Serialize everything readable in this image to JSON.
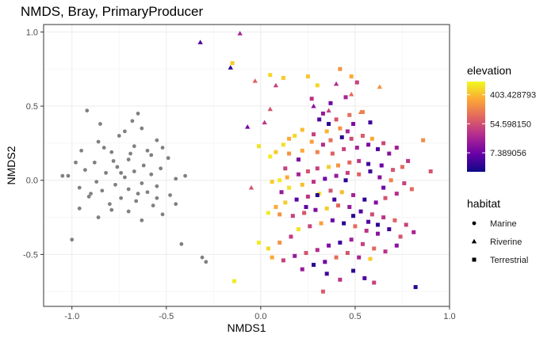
{
  "chart_data": {
    "type": "scatter",
    "title": "NMDS, Bray, PrimaryProducer",
    "xlabel": "NMDS1",
    "ylabel": "NMDS2",
    "xlim": [
      -1.15,
      1.0
    ],
    "ylim": [
      -0.85,
      1.05
    ],
    "xticks": [
      -1.0,
      -0.5,
      0.0,
      0.5,
      1.0
    ],
    "xtick_labels": [
      "-1.0",
      "-0.5",
      "0.0",
      "0.5",
      "1.0"
    ],
    "yticks": [
      -0.5,
      0.0,
      0.5,
      1.0
    ],
    "ytick_labels": [
      "-0.5",
      "0.0",
      "0.5",
      "1.0"
    ],
    "grid": true,
    "legend_position": "right",
    "color_legend": {
      "title": "elevation",
      "scale": "log",
      "min": 2.0,
      "max": 1000.0,
      "tick_values": [
        403.428793,
        54.59815,
        7.389056
      ],
      "tick_labels": [
        "403.428793",
        "54.598150",
        "7.389056"
      ],
      "palette": [
        "#0d0887",
        "#6a00a8",
        "#b12a90",
        "#e16462",
        "#fca636",
        "#f0f921"
      ]
    },
    "shape_legend": {
      "title": "habitat",
      "items": [
        {
          "label": "Marine",
          "shape": "circle"
        },
        {
          "label": "Riverine",
          "shape": "triangle"
        },
        {
          "label": "Terrestrial",
          "shape": "square"
        }
      ]
    },
    "marine_color": "#808080",
    "marine_points": [
      [
        -0.92,
        0.47
      ],
      [
        -0.65,
        0.45
      ],
      [
        -0.85,
        0.38
      ],
      [
        -0.72,
        0.33
      ],
      [
        -0.63,
        0.35
      ],
      [
        -0.75,
        0.3
      ],
      [
        -0.55,
        0.27
      ],
      [
        -0.67,
        0.23
      ],
      [
        -0.83,
        0.22
      ],
      [
        -0.95,
        0.2
      ],
      [
        -0.79,
        0.19
      ],
      [
        -0.58,
        0.17
      ],
      [
        -0.49,
        0.15
      ],
      [
        -0.7,
        0.14
      ],
      [
        -0.88,
        0.12
      ],
      [
        -0.62,
        0.1
      ],
      [
        -0.76,
        0.09
      ],
      [
        -0.53,
        0.08
      ],
      [
        -0.93,
        0.07
      ],
      [
        -0.67,
        0.06
      ],
      [
        -0.82,
        0.05
      ],
      [
        -0.58,
        0.04
      ],
      [
        -1.02,
        0.03
      ],
      [
        -0.72,
        0.02
      ],
      [
        -0.45,
        0.01
      ],
      [
        -0.87,
        -0.01
      ],
      [
        -0.63,
        -0.02
      ],
      [
        -0.77,
        -0.03
      ],
      [
        -0.55,
        -0.04
      ],
      [
        -0.96,
        -0.05
      ],
      [
        -0.7,
        -0.06
      ],
      [
        -0.84,
        -0.07
      ],
      [
        -0.6,
        -0.08
      ],
      [
        -0.48,
        -0.1
      ],
      [
        -0.91,
        -0.11
      ],
      [
        -0.74,
        -0.12
      ],
      [
        -0.66,
        -0.14
      ],
      [
        -0.8,
        -0.16
      ],
      [
        -0.57,
        -0.17
      ],
      [
        -0.96,
        -0.19
      ],
      [
        -0.7,
        -0.21
      ],
      [
        -0.52,
        -0.23
      ],
      [
        -0.86,
        -0.25
      ],
      [
        -0.63,
        -0.27
      ],
      [
        -1.0,
        -0.4
      ],
      [
        -0.42,
        -0.43
      ],
      [
        -0.31,
        -0.52
      ],
      [
        -0.29,
        -0.55
      ],
      [
        -1.05,
        0.03
      ],
      [
        -0.4,
        0.03
      ],
      [
        -0.78,
        0.13
      ],
      [
        -0.69,
        0.18
      ],
      [
        -0.86,
        0.26
      ],
      [
        -0.6,
        0.2
      ],
      [
        -0.74,
        0.05
      ],
      [
        -0.65,
        -0.09
      ],
      [
        -0.55,
        -0.12
      ],
      [
        -0.45,
        -0.16
      ],
      [
        -0.9,
        -0.09
      ],
      [
        -0.98,
        0.12
      ],
      [
        -0.79,
        -0.2
      ],
      [
        -0.68,
        0.4
      ],
      [
        -0.52,
        0.22
      ]
    ],
    "riverine_points": [
      [
        -0.11,
        0.99,
        20
      ],
      [
        -0.32,
        0.93,
        5
      ],
      [
        -0.16,
        0.76,
        3
      ],
      [
        -0.03,
        0.67,
        80
      ],
      [
        0.08,
        0.64,
        40
      ],
      [
        0.05,
        0.48,
        60
      ],
      [
        0.02,
        0.39,
        30
      ],
      [
        -0.07,
        0.36,
        8
      ],
      [
        -0.05,
        -0.05,
        60
      ],
      [
        0.28,
        0.5,
        12
      ],
      [
        0.36,
        0.47,
        40
      ],
      [
        0.53,
        0.46,
        120
      ],
      [
        0.63,
        0.63,
        200
      ],
      [
        0.4,
        0.65,
        25
      ],
      [
        0.48,
        0.58,
        90
      ]
    ],
    "terrestrial_points": [
      [
        -0.15,
        0.79,
        500
      ],
      [
        -0.14,
        -0.68,
        800
      ],
      [
        -0.01,
        0.23,
        700
      ],
      [
        0.05,
        0.71,
        600
      ],
      [
        0.12,
        0.69,
        500
      ],
      [
        0.25,
        0.7,
        450
      ],
      [
        0.3,
        0.64,
        600
      ],
      [
        0.42,
        0.75,
        200
      ],
      [
        0.48,
        0.7,
        300
      ],
      [
        0.51,
        0.66,
        40
      ],
      [
        0.45,
        0.56,
        20
      ],
      [
        0.37,
        0.52,
        8
      ],
      [
        0.27,
        0.55,
        30
      ],
      [
        0.33,
        0.45,
        15
      ],
      [
        0.4,
        0.41,
        60
      ],
      [
        0.47,
        0.44,
        100
      ],
      [
        0.54,
        0.46,
        150
      ],
      [
        0.58,
        0.39,
        4
      ],
      [
        0.49,
        0.38,
        10
      ],
      [
        0.42,
        0.35,
        200
      ],
      [
        0.35,
        0.33,
        350
      ],
      [
        0.28,
        0.31,
        40
      ],
      [
        0.22,
        0.34,
        400
      ],
      [
        0.18,
        0.3,
        600
      ],
      [
        0.15,
        0.28,
        300
      ],
      [
        0.12,
        0.24,
        700
      ],
      [
        0.08,
        0.19,
        500
      ],
      [
        0.05,
        0.16,
        800
      ],
      [
        0.15,
        0.18,
        200
      ],
      [
        0.22,
        0.2,
        300
      ],
      [
        0.3,
        0.19,
        150
      ],
      [
        0.38,
        0.18,
        80
      ],
      [
        0.44,
        0.21,
        40
      ],
      [
        0.51,
        0.22,
        20
      ],
      [
        0.57,
        0.24,
        10
      ],
      [
        0.62,
        0.21,
        5
      ],
      [
        0.68,
        0.18,
        12
      ],
      [
        0.78,
        0.13,
        30
      ],
      [
        0.86,
        0.27,
        180
      ],
      [
        0.9,
        0.06,
        60
      ],
      [
        0.33,
        0.24,
        25
      ],
      [
        0.27,
        0.26,
        250
      ],
      [
        0.37,
        0.27,
        100
      ],
      [
        0.43,
        0.29,
        3
      ],
      [
        0.48,
        0.28,
        50
      ],
      [
        0.54,
        0.3,
        70
      ],
      [
        0.59,
        0.28,
        300
      ],
      [
        0.65,
        0.25,
        45
      ],
      [
        0.72,
        0.22,
        18
      ],
      [
        0.75,
        0.09,
        90
      ],
      [
        0.7,
        0.07,
        60
      ],
      [
        0.64,
        0.1,
        7
      ],
      [
        0.57,
        0.11,
        4
      ],
      [
        0.52,
        0.13,
        30
      ],
      [
        0.47,
        0.12,
        90
      ],
      [
        0.41,
        0.1,
        200
      ],
      [
        0.36,
        0.09,
        500
      ],
      [
        0.3,
        0.08,
        40
      ],
      [
        0.25,
        0.06,
        60
      ],
      [
        0.2,
        0.04,
        20
      ],
      [
        0.14,
        0.02,
        300
      ],
      [
        0.1,
        0.0,
        800
      ],
      [
        0.06,
        -0.01,
        500
      ],
      [
        0.15,
        -0.05,
        700
      ],
      [
        0.22,
        -0.03,
        400
      ],
      [
        0.28,
        -0.01,
        30
      ],
      [
        0.34,
        0.01,
        8
      ],
      [
        0.4,
        0.03,
        15
      ],
      [
        0.46,
        0.05,
        40
      ],
      [
        0.52,
        0.04,
        80
      ],
      [
        0.58,
        0.06,
        4
      ],
      [
        0.63,
        0.02,
        12
      ],
      [
        0.69,
        0.0,
        150
      ],
      [
        0.76,
        -0.02,
        40
      ],
      [
        0.8,
        -0.06,
        90
      ],
      [
        0.72,
        -0.09,
        25
      ],
      [
        0.66,
        -0.12,
        60
      ],
      [
        0.61,
        -0.15,
        10
      ],
      [
        0.55,
        -0.13,
        3
      ],
      [
        0.49,
        -0.1,
        20
      ],
      [
        0.43,
        -0.08,
        400
      ],
      [
        0.37,
        -0.07,
        60
      ],
      [
        0.31,
        -0.09,
        700
      ],
      [
        0.25,
        -0.11,
        30
      ],
      [
        0.19,
        -0.13,
        6
      ],
      [
        0.13,
        -0.15,
        500
      ],
      [
        0.08,
        -0.18,
        300
      ],
      [
        0.04,
        -0.22,
        800
      ],
      [
        0.1,
        -0.23,
        200
      ],
      [
        0.17,
        -0.24,
        40
      ],
      [
        0.23,
        -0.22,
        60
      ],
      [
        0.29,
        -0.2,
        10
      ],
      [
        0.35,
        -0.19,
        500
      ],
      [
        0.41,
        -0.17,
        90
      ],
      [
        0.47,
        -0.18,
        15
      ],
      [
        0.53,
        -0.21,
        5
      ],
      [
        0.59,
        -0.23,
        50
      ],
      [
        0.65,
        -0.25,
        30
      ],
      [
        0.71,
        -0.27,
        80
      ],
      [
        0.77,
        -0.3,
        40
      ],
      [
        0.81,
        -0.35,
        20
      ],
      [
        0.74,
        -0.38,
        60
      ],
      [
        0.68,
        -0.33,
        4
      ],
      [
        0.62,
        -0.36,
        12
      ],
      [
        0.56,
        -0.34,
        30
      ],
      [
        0.5,
        -0.31,
        100
      ],
      [
        0.44,
        -0.29,
        3
      ],
      [
        0.38,
        -0.27,
        7
      ],
      [
        0.32,
        -0.29,
        250
      ],
      [
        0.26,
        -0.31,
        45
      ],
      [
        0.2,
        -0.33,
        700
      ],
      [
        0.16,
        -0.38,
        35
      ],
      [
        0.1,
        -0.42,
        200
      ],
      [
        0.04,
        -0.46,
        600
      ],
      [
        -0.01,
        -0.42,
        800
      ],
      [
        0.06,
        -0.52,
        300
      ],
      [
        0.12,
        -0.54,
        40
      ],
      [
        0.18,
        -0.51,
        15
      ],
      [
        0.24,
        -0.49,
        60
      ],
      [
        0.3,
        -0.47,
        25
      ],
      [
        0.36,
        -0.44,
        10
      ],
      [
        0.42,
        -0.42,
        4
      ],
      [
        0.48,
        -0.4,
        18
      ],
      [
        0.54,
        -0.43,
        40
      ],
      [
        0.6,
        -0.46,
        90
      ],
      [
        0.66,
        -0.48,
        30
      ],
      [
        0.72,
        -0.44,
        12
      ],
      [
        0.58,
        -0.53,
        500
      ],
      [
        0.52,
        -0.52,
        20
      ],
      [
        0.46,
        -0.49,
        60
      ],
      [
        0.4,
        -0.52,
        100
      ],
      [
        0.34,
        -0.55,
        8
      ],
      [
        0.28,
        -0.57,
        3
      ],
      [
        0.22,
        -0.6,
        15
      ],
      [
        0.35,
        -0.63,
        4
      ],
      [
        0.42,
        -0.67,
        30
      ],
      [
        0.49,
        -0.61,
        3
      ],
      [
        0.55,
        -0.66,
        5
      ],
      [
        0.6,
        -0.69,
        40
      ],
      [
        0.82,
        -0.72,
        3
      ],
      [
        0.33,
        -0.75,
        70
      ],
      [
        0.3,
        -0.1,
        3
      ],
      [
        0.24,
        -0.18,
        6
      ],
      [
        0.39,
        -0.13,
        4
      ],
      [
        0.49,
        -0.24,
        3
      ],
      [
        0.57,
        -0.28,
        5
      ],
      [
        0.62,
        -0.3,
        3
      ],
      [
        0.31,
        0.41,
        5
      ],
      [
        0.36,
        0.38,
        3
      ],
      [
        0.46,
        0.33,
        20
      ],
      [
        0.2,
        0.14,
        10
      ],
      [
        0.13,
        0.08,
        40
      ],
      [
        0.11,
        -0.08,
        15
      ],
      [
        0.45,
        0.0,
        3
      ],
      [
        0.65,
        -0.05,
        8
      ]
    ]
  }
}
